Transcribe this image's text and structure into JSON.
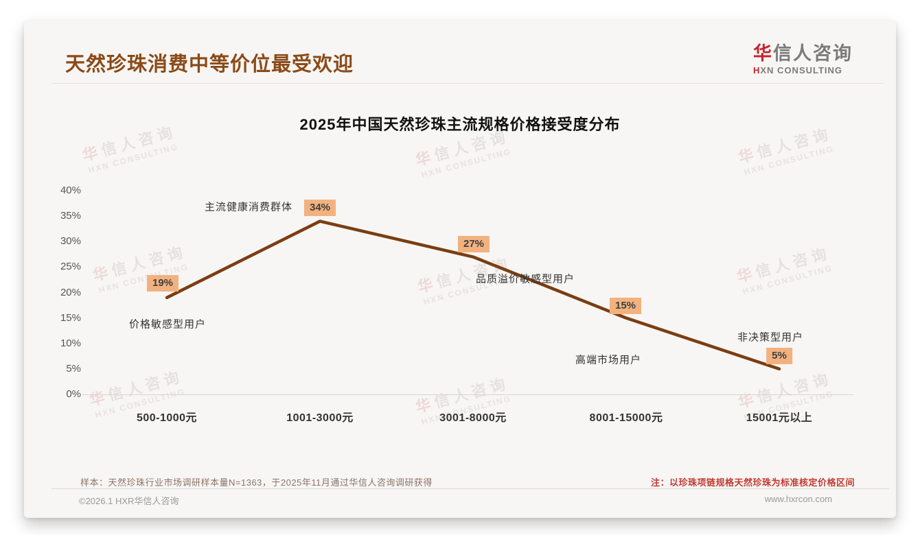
{
  "page": {
    "header": {
      "title": "天然珍珠消费中等价位最受欢迎",
      "title_color": "#8b4a17",
      "logo": {
        "cn_first": "华",
        "cn_rest": "信人咨询",
        "en_first": "H",
        "en_rest": "XN CONSULTING",
        "accent_color": "#c1272d"
      }
    },
    "watermark": {
      "line1": "华信人咨询",
      "line2": "HXN CONSULTING"
    },
    "footer": {
      "sample_note": "样本：天然珍珠行业市场调研样本量N=1363，于2025年11月通过华信人咨询调研获得",
      "price_note": "注：以珍珠项链规格天然珍珠为标准核定价格区间",
      "price_note_color": "#c23a32",
      "copyright": "©2026.1 HXR华信人咨询",
      "website": "www.hxrcon.com"
    }
  },
  "chart_data": {
    "type": "line",
    "title": "2025年中国天然珍珠主流规格价格接受度分布",
    "categories": [
      "500-1000元",
      "1001-3000元",
      "3001-8000元",
      "8001-15000元",
      "15001元以上"
    ],
    "values": [
      19,
      34,
      27,
      15,
      5
    ],
    "value_labels": [
      "19%",
      "34%",
      "27%",
      "15%",
      "5%"
    ],
    "point_annotations": [
      "价格敏感型用户",
      "主流健康消费群体",
      "品质溢价敏感型用户",
      "高端市场用户",
      "非决策型用户"
    ],
    "xlabel": "",
    "ylabel": "",
    "y_ticks": [
      "40%",
      "35%",
      "30%",
      "25%",
      "20%",
      "15%",
      "10%",
      "5%",
      "0%"
    ],
    "ylim": [
      0,
      40
    ],
    "grid": false,
    "legend": "none",
    "line_color": "#7a3e12",
    "badge_bg": "#f2b27f",
    "badge_text_color": "#3f3f3f"
  }
}
